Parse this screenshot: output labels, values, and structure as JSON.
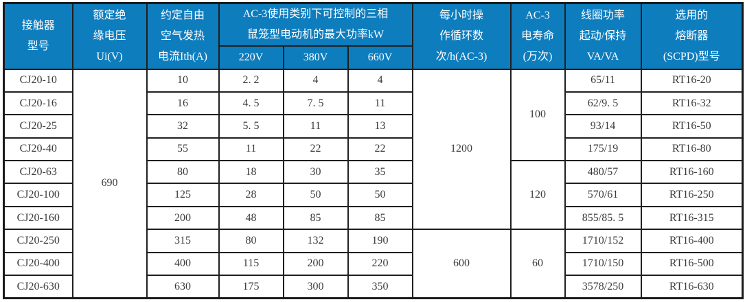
{
  "table": {
    "header": {
      "contactor_model": "接触器\n型号",
      "rated_insulation_voltage": "额定绝\n缘电压\nUi(V)",
      "thermal_current": "约定自由\n空气发热\n电流Ith(A)",
      "ac3_max_power": "AC-3使用类别下可控制的三相\n鼠笼型电动机的最大功率kW",
      "voltage_220": "220V",
      "voltage_380": "380V",
      "voltage_660": "660V",
      "cycles_per_hour": "每小时操\n作循环数\n次/h(AC-3)",
      "electrical_life": "AC-3\n电寿命\n(万次)",
      "coil_power": "线圈功率\n起动/保持\nVA/VA",
      "fuse_model": "选用的\n熔断器\n(SCPD)型号"
    },
    "rows": [
      {
        "cells": [
          {
            "v": "CJ20-10"
          },
          {
            "v": "690",
            "rowspan": 10
          },
          {
            "v": "10"
          },
          {
            "v": "2. 2"
          },
          {
            "v": "4"
          },
          {
            "v": "4"
          },
          {
            "v": "1200",
            "rowspan": 7
          },
          {
            "v": "100",
            "rowspan": 4
          },
          {
            "v": "65/11"
          },
          {
            "v": "RT16-20"
          }
        ]
      },
      {
        "cells": [
          {
            "v": "CJ20-16"
          },
          {
            "v": "16"
          },
          {
            "v": "4. 5"
          },
          {
            "v": "7. 5"
          },
          {
            "v": "11"
          },
          {
            "v": "62/9. 5"
          },
          {
            "v": "RT16-32"
          }
        ]
      },
      {
        "cells": [
          {
            "v": "CJ20-25"
          },
          {
            "v": "32"
          },
          {
            "v": "5. 5"
          },
          {
            "v": "11"
          },
          {
            "v": "13"
          },
          {
            "v": "93/14"
          },
          {
            "v": "RT16-50"
          }
        ]
      },
      {
        "cells": [
          {
            "v": "CJ20-40"
          },
          {
            "v": "55"
          },
          {
            "v": "11"
          },
          {
            "v": "22"
          },
          {
            "v": "22"
          },
          {
            "v": "175/19"
          },
          {
            "v": "RT16-80"
          }
        ]
      },
      {
        "cells": [
          {
            "v": "CJ20-63"
          },
          {
            "v": "80"
          },
          {
            "v": "18"
          },
          {
            "v": "30"
          },
          {
            "v": "35"
          },
          {
            "v": "120",
            "rowspan": 3
          },
          {
            "v": "480/57"
          },
          {
            "v": "RT16-160"
          }
        ]
      },
      {
        "cells": [
          {
            "v": "CJ20-100"
          },
          {
            "v": "125"
          },
          {
            "v": "28"
          },
          {
            "v": "50"
          },
          {
            "v": "50"
          },
          {
            "v": "570/61"
          },
          {
            "v": "RT16-250"
          }
        ]
      },
      {
        "cells": [
          {
            "v": "CJ20-160"
          },
          {
            "v": "200"
          },
          {
            "v": "48"
          },
          {
            "v": "85"
          },
          {
            "v": "85"
          },
          {
            "v": "855/85. 5"
          },
          {
            "v": "RT16-315"
          }
        ]
      },
      {
        "cells": [
          {
            "v": "CJ20-250"
          },
          {
            "v": "315"
          },
          {
            "v": "80"
          },
          {
            "v": "132"
          },
          {
            "v": "190"
          },
          {
            "v": "600",
            "rowspan": 3
          },
          {
            "v": "60",
            "rowspan": 3
          },
          {
            "v": "1710/152"
          },
          {
            "v": "RT16-400"
          }
        ]
      },
      {
        "cells": [
          {
            "v": "CJ20-400"
          },
          {
            "v": "400"
          },
          {
            "v": "115"
          },
          {
            "v": "200"
          },
          {
            "v": "220"
          },
          {
            "v": "1710/150"
          },
          {
            "v": "RT16-500"
          }
        ]
      },
      {
        "cells": [
          {
            "v": "CJ20-630"
          },
          {
            "v": "630"
          },
          {
            "v": "175"
          },
          {
            "v": "300"
          },
          {
            "v": "350"
          },
          {
            "v": "3578/250"
          },
          {
            "v": "RT16-630"
          }
        ]
      }
    ]
  },
  "colors": {
    "header_bg": "#0e7dbe",
    "header_text": "#ffffff",
    "border": "#1f1f1f",
    "cell_text": "#3a3a3a",
    "cell_bg": "#ffffff"
  }
}
